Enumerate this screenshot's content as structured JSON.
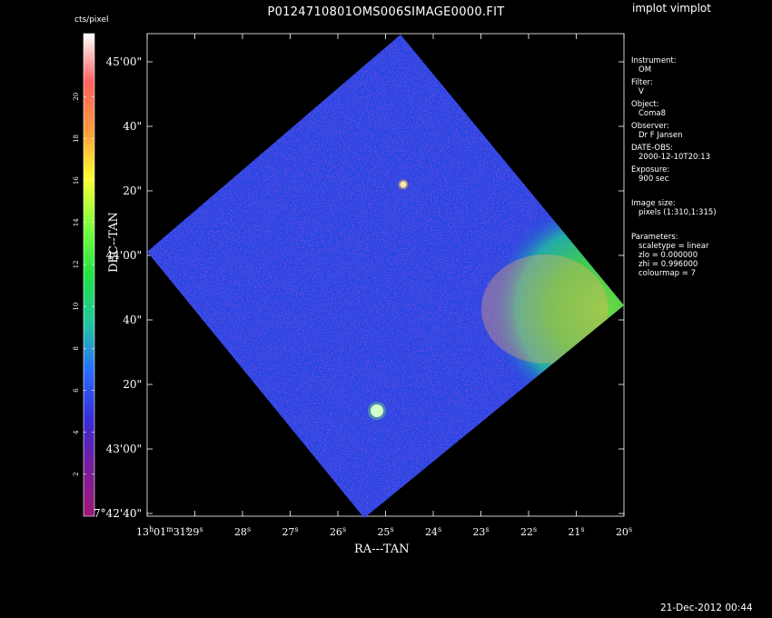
{
  "window": {
    "title": "P0124710801OMS006SIMAGE0000.FIT",
    "app_name": "implot vimplot",
    "timestamp": "21-Dec-2012 00:44"
  },
  "colorbar": {
    "label": "cts/pixel",
    "ticks": [
      "2",
      "4",
      "6",
      "8",
      "10",
      "12",
      "14",
      "16",
      "18",
      "20"
    ],
    "ticks_values": [
      2,
      4,
      6,
      8,
      10,
      12,
      14,
      16,
      18,
      20
    ],
    "range": [
      0,
      23
    ],
    "colormap": [
      "#ffffff",
      "#ff6060",
      "#ff9a3c",
      "#ffff30",
      "#7cff3c",
      "#22e044",
      "#20c8a0",
      "#2a6cff",
      "#3a2cd8",
      "#7a1c9c",
      "#a01878"
    ]
  },
  "axes": {
    "xlabel": "RA---TAN",
    "ylabel": "DEC--TAN",
    "x_ticks": [
      "13h01m31s",
      "29s",
      "28s",
      "27s",
      "26s",
      "25s",
      "24s",
      "23s",
      "22s",
      "21s",
      "20s"
    ],
    "y_ticks": [
      "42'40\"",
      "43'00\"",
      "20\"",
      "40\"",
      "44'00\"",
      "20\"",
      "40\"",
      "45'00\""
    ],
    "y_first_prefix": "7°"
  },
  "info_panel": [
    {
      "label": "Instrument:",
      "value": "OM"
    },
    {
      "label": "Filter:",
      "value": "V"
    },
    {
      "label": "Object:",
      "value": "Coma8"
    },
    {
      "label": "Observer:",
      "value": "Dr F Jansen"
    },
    {
      "label": "DATE-OBS:",
      "value": "2000-12-10T20:13"
    },
    {
      "label": "Exposure:",
      "value": "900 sec"
    }
  ],
  "image_size": {
    "label": "Image size:",
    "value": "pixels (1:310,1:315)"
  },
  "parameters": {
    "label": "Parameters:",
    "scaletype": "scaletype = linear",
    "zlo": "zlo = 0.000000",
    "zhi": "zhi = 0.996000",
    "colourmap": "colourmap =    7"
  }
}
